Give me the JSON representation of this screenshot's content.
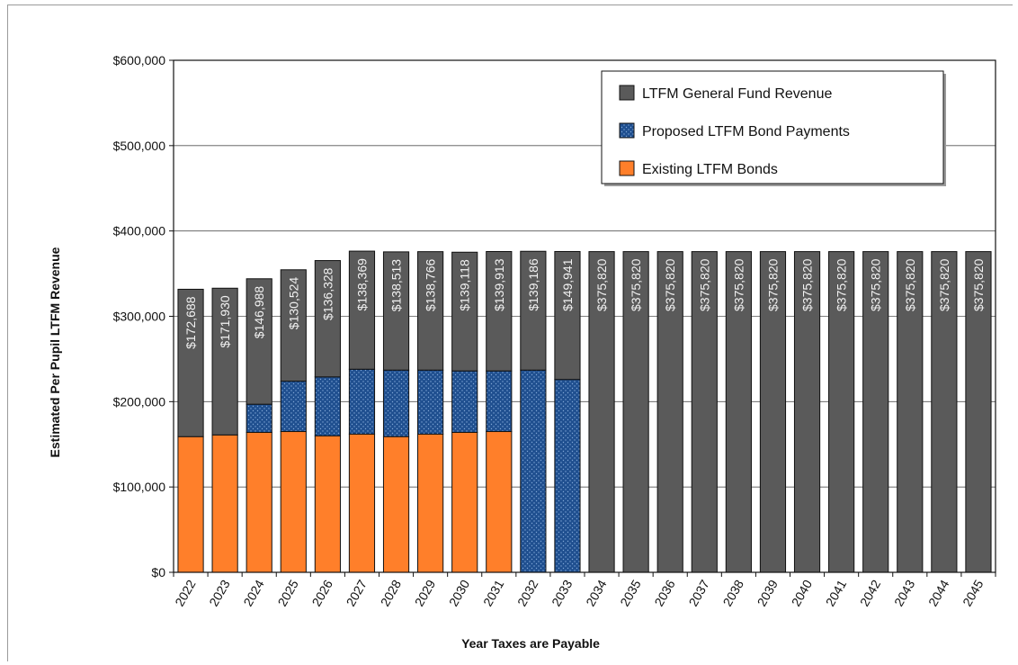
{
  "chart_data": {
    "type": "bar",
    "stacked": true,
    "title": "",
    "xlabel": "Year Taxes are Payable",
    "ylabel": "Estimated Per Pupil LTFM Revenue",
    "ylim": [
      0,
      600000
    ],
    "yticks": [
      0,
      100000,
      200000,
      300000,
      400000,
      500000,
      600000
    ],
    "ytick_labels": [
      "$0",
      "$100,000",
      "$200,000",
      "$300,000",
      "$400,000",
      "$500,000",
      "$600,000"
    ],
    "grid": true,
    "legend_position": "top-right",
    "categories": [
      "2022",
      "2023",
      "2024",
      "2025",
      "2026",
      "2027",
      "2028",
      "2029",
      "2030",
      "2031",
      "2032",
      "2033",
      "2034",
      "2035",
      "2036",
      "2037",
      "2038",
      "2039",
      "2040",
      "2041",
      "2042",
      "2043",
      "2044",
      "2045"
    ],
    "series": [
      {
        "name": "Existing LTFM Bonds",
        "color": "#ff7f2a",
        "values": [
          159000,
          161000,
          164000,
          165000,
          160000,
          162000,
          159000,
          162000,
          164000,
          165000,
          0,
          0,
          0,
          0,
          0,
          0,
          0,
          0,
          0,
          0,
          0,
          0,
          0,
          0
        ]
      },
      {
        "name": "Proposed LTFM Bond Payments",
        "color": "#1f4f8f",
        "values": [
          0,
          0,
          33000,
          59000,
          69000,
          76000,
          78000,
          75000,
          72000,
          71000,
          237000,
          226000,
          0,
          0,
          0,
          0,
          0,
          0,
          0,
          0,
          0,
          0,
          0,
          0
        ]
      },
      {
        "name": "LTFM General Fund Revenue",
        "color": "#5a5a5a",
        "values": [
          172688,
          171930,
          146988,
          130524,
          136328,
          138369,
          138513,
          138766,
          139118,
          139913,
          139186,
          149941,
          375820,
          375820,
          375820,
          375820,
          375820,
          375820,
          375820,
          375820,
          375820,
          375820,
          375820,
          375820
        ]
      }
    ],
    "data_labels": [
      "$172,688",
      "$171,930",
      "$146,988",
      "$130,524",
      "$136,328",
      "$138,369",
      "$138,513",
      "$138,766",
      "$139,118",
      "$139,913",
      "$139,186",
      "$149,941",
      "$375,820",
      "$375,820",
      "$375,820",
      "$375,820",
      "$375,820",
      "$375,820",
      "$375,820",
      "$375,820",
      "$375,820",
      "$375,820",
      "$375,820",
      "$375,820"
    ],
    "legend_order": [
      "LTFM General Fund Revenue",
      "Proposed LTFM Bond Payments",
      "Existing LTFM Bonds"
    ]
  }
}
